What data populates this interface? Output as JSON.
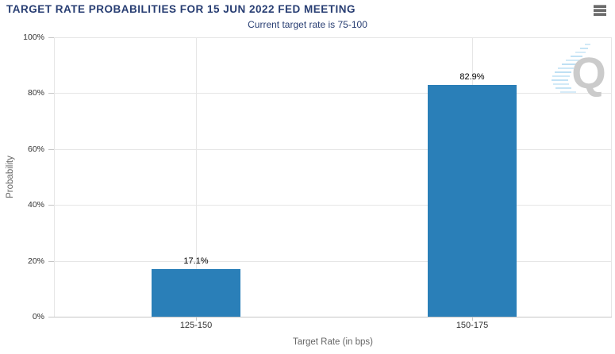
{
  "chart_data": {
    "type": "bar",
    "title": "TARGET RATE PROBABILITIES FOR 15 JUN 2022 FED MEETING",
    "subtitle": "Current target rate is 75-100",
    "categories": [
      "125-150",
      "150-175"
    ],
    "values": [
      17.1,
      82.9
    ],
    "value_labels": [
      "17.1%",
      "82.9%"
    ],
    "xlabel": "Target Rate (in bps)",
    "ylabel": "Probability",
    "ylim": [
      0,
      100
    ],
    "ytick_labels": [
      "0%",
      "20%",
      "40%",
      "60%",
      "80%",
      "100%"
    ],
    "grid": true,
    "legend": "none",
    "bar_color": "#2a7fb8"
  },
  "menu": {
    "icon": "hamburger-icon"
  },
  "watermark": {
    "letter": "Q"
  },
  "colors": {
    "title_navy": "#273d72",
    "bar_blue": "#2a7fb8",
    "gridline": "#e6e6e6",
    "axis_line": "#c5c5c5",
    "axis_title_gray": "#666666",
    "tick_label": "#333333",
    "watermark_gray": "#cbcbcb",
    "watermark_blue": "#aed9f2"
  }
}
